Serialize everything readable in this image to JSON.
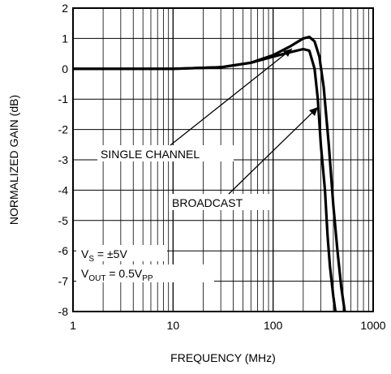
{
  "chart_data": {
    "type": "line",
    "x_scale": "log",
    "xlim": [
      1,
      1000
    ],
    "ylim": [
      -8,
      2
    ],
    "xlabel": "FREQUENCY (MHz)",
    "ylabel": "NORMALIZED GAIN (dB)",
    "x_ticks": [
      "1",
      "10",
      "100",
      "1000"
    ],
    "y_ticks": [
      "2",
      "1",
      "0",
      "-1",
      "-2",
      "-3",
      "-4",
      "-5",
      "-6",
      "-7",
      "-8"
    ],
    "grid": true,
    "series": [
      {
        "name": "SINGLE CHANNEL",
        "x": [
          1,
          10,
          30,
          60,
          100,
          150,
          200,
          230,
          260,
          280,
          300,
          330,
          350,
          370,
          400,
          420
        ],
        "y": [
          0,
          0,
          0.05,
          0.2,
          0.4,
          0.55,
          0.65,
          0.6,
          0,
          -1.0,
          -2.5,
          -4.0,
          -5.5,
          -6.5,
          -7.5,
          -8
        ]
      },
      {
        "name": "BROADCAST",
        "x": [
          1,
          10,
          30,
          60,
          100,
          150,
          200,
          230,
          260,
          290,
          320,
          360,
          400,
          440,
          480,
          520
        ],
        "y": [
          0,
          0,
          0.05,
          0.2,
          0.45,
          0.75,
          1.0,
          1.05,
          0.9,
          0.4,
          -0.6,
          -2.5,
          -4.5,
          -6.0,
          -7.2,
          -8
        ]
      }
    ],
    "annotations": [
      {
        "label": "SINGLE CHANNEL"
      },
      {
        "label": "BROADCAST"
      },
      {
        "label_main": "V",
        "label_sub": "S",
        "label_rest": " = ±5V"
      },
      {
        "label_main": "V",
        "label_sub": "OUT",
        "label_rest": " = 0.5V",
        "label_sub2": "PP"
      }
    ]
  }
}
